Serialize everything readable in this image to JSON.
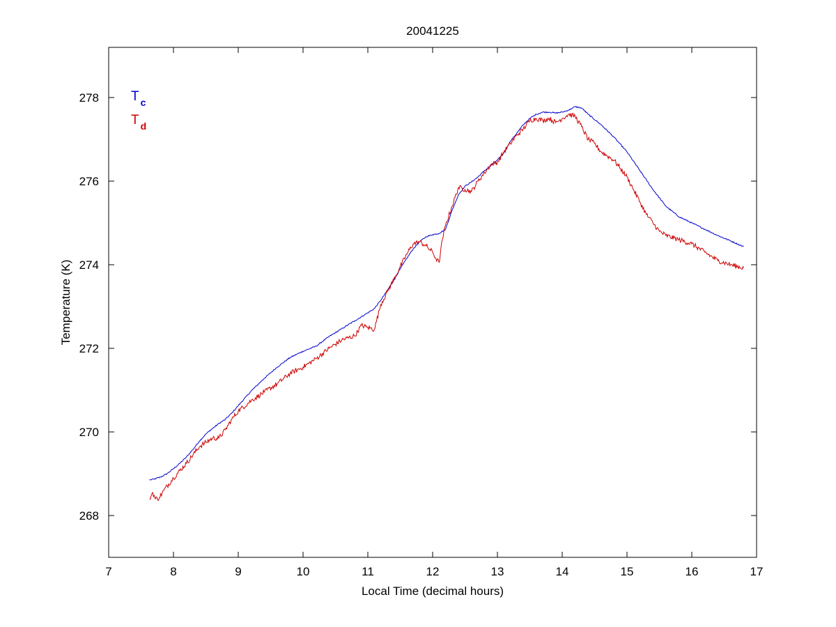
{
  "chart_data": {
    "type": "line",
    "title": "20041225",
    "xlabel": "Local Time (decimal hours)",
    "ylabel": "Temperature (K)",
    "xlim": [
      7,
      17
    ],
    "ylim": [
      267,
      279.2
    ],
    "xticks": [
      7,
      8,
      9,
      10,
      11,
      12,
      13,
      14,
      15,
      16,
      17
    ],
    "yticks": [
      268,
      270,
      272,
      274,
      276,
      278
    ],
    "grid": false,
    "legend": {
      "placement": "top-left",
      "entries": [
        {
          "main": "T",
          "sub": "c",
          "color": "#0000cc"
        },
        {
          "main": "T",
          "sub": "d",
          "color": "#cc0000"
        }
      ]
    },
    "series": [
      {
        "color": "#0000cc",
        "noise": 0.015,
        "x": [
          7.63,
          7.7,
          7.8,
          7.9,
          8.0,
          8.1,
          8.2,
          8.3,
          8.4,
          8.5,
          8.6,
          8.7,
          8.8,
          8.9,
          9.0,
          9.2,
          9.4,
          9.6,
          9.8,
          10.0,
          10.2,
          10.4,
          10.6,
          10.8,
          11.0,
          11.1,
          11.2,
          11.3,
          11.4,
          11.5,
          11.6,
          11.7,
          11.8,
          11.9,
          12.0,
          12.1,
          12.2,
          12.3,
          12.4,
          12.5,
          12.6,
          12.7,
          12.8,
          12.9,
          13.0,
          13.1,
          13.2,
          13.3,
          13.4,
          13.5,
          13.6,
          13.7,
          13.8,
          13.9,
          14.0,
          14.1,
          14.2,
          14.3,
          14.4,
          14.6,
          14.8,
          15.0,
          15.2,
          15.4,
          15.6,
          15.8,
          16.0,
          16.2,
          16.4,
          16.6,
          16.8
        ],
        "y": [
          268.85,
          268.87,
          268.92,
          269.0,
          269.12,
          269.25,
          269.4,
          269.58,
          269.78,
          269.95,
          270.08,
          270.2,
          270.3,
          270.45,
          270.63,
          270.98,
          271.28,
          271.55,
          271.78,
          271.93,
          272.05,
          272.28,
          272.47,
          272.66,
          272.85,
          272.95,
          273.15,
          273.38,
          273.63,
          273.9,
          274.15,
          274.38,
          274.55,
          274.67,
          274.72,
          274.75,
          274.85,
          275.3,
          275.68,
          275.88,
          275.98,
          276.1,
          276.25,
          276.37,
          276.5,
          276.68,
          276.95,
          277.15,
          277.35,
          277.5,
          277.6,
          277.65,
          277.65,
          277.63,
          277.65,
          277.7,
          277.78,
          277.75,
          277.6,
          277.35,
          277.05,
          276.7,
          276.25,
          275.8,
          275.4,
          275.15,
          275.0,
          274.85,
          274.7,
          274.57,
          274.43
        ]
      },
      {
        "color": "#cc0000",
        "noise": 0.06,
        "x": [
          7.63,
          7.68,
          7.72,
          7.78,
          7.85,
          8.0,
          8.2,
          8.4,
          8.5,
          8.6,
          8.7,
          8.8,
          8.9,
          9.0,
          9.2,
          9.4,
          9.6,
          9.8,
          10.0,
          10.2,
          10.4,
          10.6,
          10.8,
          10.9,
          11.0,
          11.1,
          11.2,
          11.3,
          11.4,
          11.5,
          11.6,
          11.7,
          11.8,
          11.9,
          12.0,
          12.05,
          12.1,
          12.15,
          12.2,
          12.3,
          12.4,
          12.5,
          12.6,
          12.7,
          12.8,
          12.9,
          13.0,
          13.1,
          13.2,
          13.3,
          13.4,
          13.5,
          13.6,
          13.7,
          13.8,
          13.9,
          14.0,
          14.1,
          14.2,
          14.3,
          14.4,
          14.5,
          14.6,
          14.7,
          14.8,
          14.9,
          15.0,
          15.1,
          15.2,
          15.3,
          15.4,
          15.5,
          15.6,
          15.8,
          16.0,
          16.2,
          16.4,
          16.6,
          16.8
        ],
        "y": [
          268.4,
          268.55,
          268.4,
          268.42,
          268.6,
          268.9,
          269.25,
          269.65,
          269.75,
          269.85,
          269.85,
          270.05,
          270.3,
          270.5,
          270.75,
          270.95,
          271.15,
          271.4,
          271.55,
          271.75,
          272.0,
          272.2,
          272.3,
          272.55,
          272.5,
          272.45,
          273.05,
          273.35,
          273.65,
          273.95,
          274.25,
          274.5,
          274.55,
          274.45,
          274.3,
          274.15,
          274.05,
          274.6,
          274.95,
          275.4,
          275.85,
          275.8,
          275.75,
          276.0,
          276.2,
          276.4,
          276.45,
          276.7,
          276.9,
          277.1,
          277.25,
          277.45,
          277.5,
          277.45,
          277.5,
          277.4,
          277.5,
          277.6,
          277.55,
          277.3,
          277.0,
          276.9,
          276.7,
          276.6,
          276.5,
          276.3,
          276.1,
          275.8,
          275.5,
          275.2,
          275.0,
          274.8,
          274.7,
          274.6,
          274.5,
          274.3,
          274.1,
          274.0,
          273.92
        ]
      }
    ]
  }
}
